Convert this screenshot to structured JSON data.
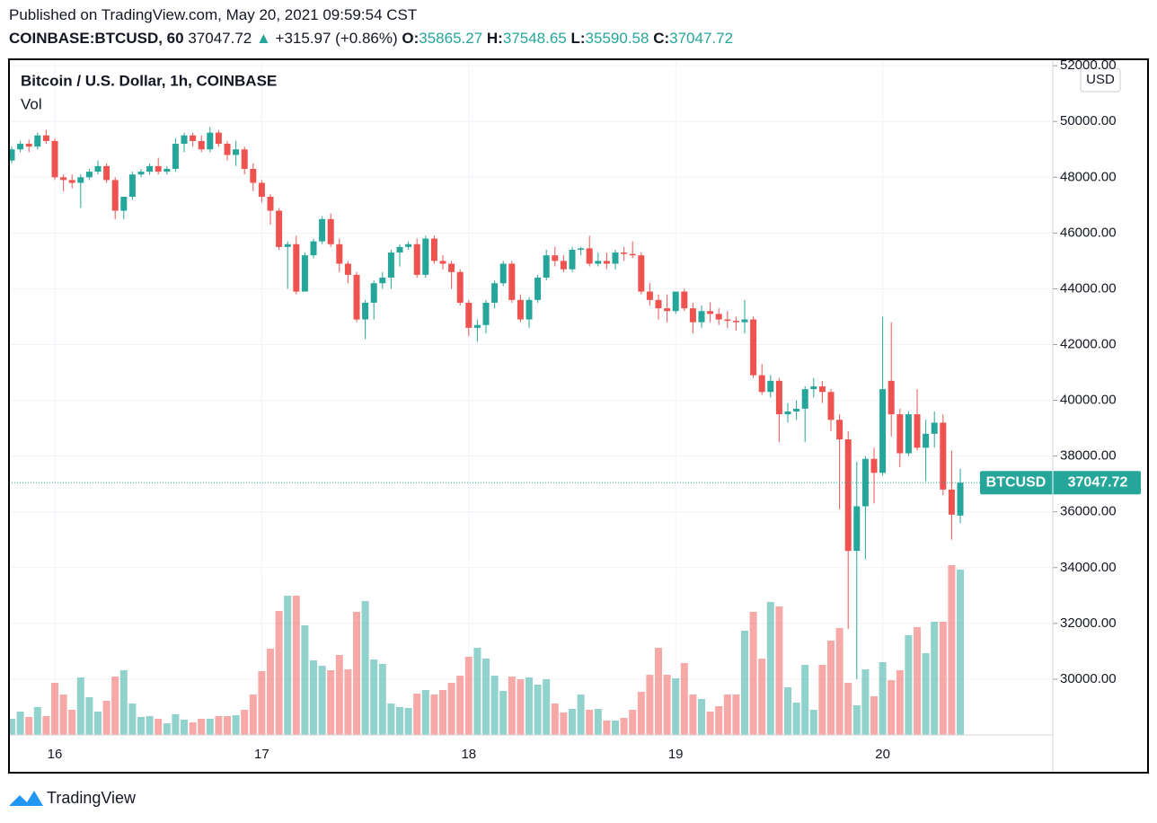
{
  "header": {
    "published": "Published on TradingView.com, May 20, 2021 09:59:54 CST",
    "symbol": "COINBASE:BTCUSD, 60",
    "price": "37047.72",
    "arrow": "▲",
    "change": "+315.97 (+0.86%)",
    "o_label": "O:",
    "o": "35865.27",
    "h_label": "H:",
    "h": "37548.65",
    "l_label": "L:",
    "l": "35590.58",
    "c_label": "C:",
    "c": "37047.72"
  },
  "footer": {
    "brand": "TradingView"
  },
  "chart_data": {
    "type": "candlestick",
    "title": "Bitcoin / U.S. Dollar, 1h, COINBASE",
    "volume_label": "Vol",
    "currency": "USD",
    "up_color": "#26a69a",
    "down_color": "#ef5350",
    "grid": true,
    "price_tag": {
      "name": "BTCUSD",
      "value": 37047.72
    },
    "ylim": [
      28000,
      52230
    ],
    "yticks": [
      {
        "value": 30000,
        "label": "30000.00"
      },
      {
        "value": 32000,
        "label": "32000.00"
      },
      {
        "value": 34000,
        "label": "34000.00"
      },
      {
        "value": 36000,
        "label": "36000.00"
      },
      {
        "value": 38000,
        "label": "38000.00"
      },
      {
        "value": 40000,
        "label": "40000.00"
      },
      {
        "value": 42000,
        "label": "42000.00"
      },
      {
        "value": 44000,
        "label": "44000.00"
      },
      {
        "value": 46000,
        "label": "46000.00"
      },
      {
        "value": 48000,
        "label": "48000.00"
      },
      {
        "value": 50000,
        "label": "50000.00"
      },
      {
        "value": 52000,
        "label": "52000.00"
      }
    ],
    "categories": [
      null,
      null,
      null,
      null,
      null,
      "16",
      null,
      null,
      null,
      null,
      null,
      null,
      null,
      null,
      null,
      null,
      null,
      null,
      null,
      null,
      null,
      null,
      null,
      null,
      null,
      null,
      null,
      null,
      null,
      "17",
      null,
      null,
      null,
      null,
      null,
      null,
      null,
      null,
      null,
      null,
      null,
      null,
      null,
      null,
      null,
      null,
      null,
      null,
      null,
      null,
      null,
      null,
      null,
      "18",
      null,
      null,
      null,
      null,
      null,
      null,
      null,
      null,
      null,
      null,
      null,
      null,
      null,
      null,
      null,
      null,
      null,
      null,
      null,
      null,
      null,
      null,
      null,
      "19",
      null,
      null,
      null,
      null,
      null,
      null,
      null,
      null,
      null,
      null,
      null,
      null,
      null,
      null,
      null,
      null,
      null,
      null,
      null,
      null,
      null,
      null,
      null,
      "20",
      null,
      null,
      null,
      null,
      null,
      null,
      null,
      null,
      null
    ],
    "open": [
      48600,
      49000,
      49200,
      49100,
      49500,
      49300,
      48000,
      47900,
      47800,
      48000,
      48200,
      48400,
      47900,
      46800,
      47300,
      48100,
      48200,
      48400,
      48200,
      48300,
      49200,
      49500,
      49300,
      49000,
      49600,
      49200,
      48800,
      49000,
      48300,
      47800,
      47300,
      46800,
      45500,
      45600,
      43900,
      45200,
      45700,
      46500,
      45600,
      44900,
      44500,
      42900,
      43500,
      44200,
      44400,
      45300,
      45500,
      45600,
      44500,
      45800,
      45000,
      44900,
      44600,
      43500,
      42600,
      42700,
      43500,
      44200,
      44900,
      43600,
      42900,
      43600,
      44400,
      45200,
      45000,
      44700,
      45400,
      45450,
      44900,
      45000,
      44900,
      45300,
      45250,
      45200,
      43900,
      43600,
      43300,
      43200,
      43900,
      43300,
      42800,
      43200,
      43100,
      42900,
      42850,
      42800,
      42900,
      40900,
      40300,
      40700,
      39500,
      39600,
      39700,
      40400,
      40500,
      40300,
      39300,
      38600,
      34600,
      36200,
      37900,
      37400,
      40700,
      39500,
      38100,
      39500,
      38300,
      38800,
      39200,
      36800,
      35865.27
    ],
    "high": [
      49100,
      49300,
      49350,
      49600,
      49700,
      49400,
      48100,
      48100,
      48100,
      48300,
      48600,
      48500,
      48000,
      47300,
      48200,
      48300,
      48500,
      48700,
      48400,
      49400,
      49600,
      49600,
      49500,
      49800,
      49700,
      49300,
      49300,
      49100,
      48500,
      47900,
      47400,
      46900,
      45700,
      45900,
      45300,
      45800,
      46600,
      46700,
      45800,
      45000,
      44600,
      43600,
      44300,
      44600,
      45400,
      45600,
      45700,
      45800,
      45900,
      45900,
      45200,
      45000,
      44700,
      43600,
      42900,
      43600,
      44300,
      45000,
      45000,
      43800,
      43700,
      44500,
      45400,
      45500,
      45200,
      45500,
      45500,
      45900,
      45300,
      45300,
      45400,
      45500,
      45700,
      45300,
      44200,
      43800,
      43800,
      43900,
      44000,
      43500,
      43400,
      43500,
      43300,
      43200,
      43000,
      43600,
      43000,
      41300,
      40900,
      40800,
      39900,
      40000,
      40500,
      40800,
      40700,
      40400,
      39500,
      38900,
      37800,
      38000,
      38300,
      43000,
      42800,
      39700,
      39600,
      40400,
      39300,
      39600,
      39500,
      38200,
      37548.65
    ],
    "low": [
      48500,
      48900,
      48900,
      49000,
      49200,
      47900,
      47500,
      47600,
      46900,
      47900,
      48100,
      47800,
      46500,
      46500,
      47200,
      48000,
      48100,
      48100,
      48100,
      48200,
      48900,
      49100,
      48900,
      48900,
      49100,
      48600,
      48400,
      48100,
      47500,
      47100,
      46300,
      45400,
      44000,
      43800,
      43900,
      45100,
      45600,
      45500,
      44600,
      44200,
      42800,
      42200,
      42900,
      44000,
      44000,
      44800,
      45400,
      44400,
      44400,
      44900,
      44700,
      44000,
      43400,
      42300,
      42100,
      42400,
      43300,
      44100,
      43500,
      42800,
      42600,
      43500,
      44300,
      44800,
      44600,
      44600,
      45200,
      44800,
      44800,
      44700,
      44700,
      45000,
      45100,
      43800,
      43400,
      42900,
      42800,
      43100,
      43200,
      42400,
      42600,
      42800,
      42700,
      42600,
      42500,
      42400,
      40800,
      40200,
      40100,
      38500,
      39200,
      39300,
      38500,
      40100,
      39900,
      38900,
      36100,
      31800,
      30000,
      34300,
      36300,
      37300,
      38700,
      37600,
      38000,
      38200,
      37100,
      38300,
      36600,
      35000,
      35590.58
    ],
    "close": [
      49000,
      49200,
      49100,
      49500,
      49300,
      48000,
      47900,
      47800,
      48000,
      48200,
      48400,
      47900,
      46800,
      47300,
      48100,
      48200,
      48400,
      48200,
      48300,
      49200,
      49500,
      49300,
      49000,
      49600,
      49200,
      48800,
      49000,
      48300,
      47800,
      47300,
      46800,
      45500,
      45600,
      43900,
      45200,
      45700,
      46500,
      45600,
      44900,
      44500,
      42900,
      43500,
      44200,
      44400,
      45300,
      45500,
      45600,
      44500,
      45800,
      45000,
      44900,
      44600,
      43500,
      42600,
      42700,
      43500,
      44200,
      44900,
      43600,
      42900,
      43600,
      44400,
      45200,
      45000,
      44700,
      45400,
      45450,
      44900,
      45000,
      44900,
      45300,
      45250,
      45200,
      43900,
      43600,
      43300,
      43200,
      43900,
      43300,
      42800,
      43200,
      43100,
      42900,
      42850,
      42800,
      42900,
      40900,
      40300,
      40700,
      39500,
      39600,
      39700,
      40400,
      40500,
      40300,
      39300,
      38600,
      34600,
      36200,
      37900,
      37400,
      40400,
      39500,
      38100,
      39500,
      38300,
      38800,
      39200,
      36800,
      35900,
      37047.72
    ],
    "volume": [
      18,
      26,
      20,
      31,
      21,
      58,
      45,
      28,
      64,
      42,
      26,
      38,
      65,
      72,
      35,
      20,
      21,
      18,
      13,
      23,
      17,
      14,
      18,
      18,
      21,
      21,
      22,
      28,
      45,
      71,
      96,
      138,
      155,
      155,
      122,
      83,
      77,
      72,
      89,
      73,
      137,
      149,
      84,
      79,
      35,
      31,
      30,
      46,
      50,
      45,
      50,
      58,
      66,
      87,
      97,
      85,
      66,
      49,
      65,
      62,
      64,
      56,
      62,
      35,
      25,
      29,
      45,
      28,
      29,
      16,
      16,
      19,
      28,
      48,
      67,
      97,
      67,
      63,
      80,
      45,
      40,
      26,
      32,
      45,
      45,
      116,
      137,
      85,
      148,
      143,
      53,
      36,
      78,
      28,
      78,
      105,
      119,
      58,
      33,
      73,
      43,
      81,
      61,
      72,
      111,
      120,
      91,
      126,
      126,
      189,
      184
    ]
  }
}
